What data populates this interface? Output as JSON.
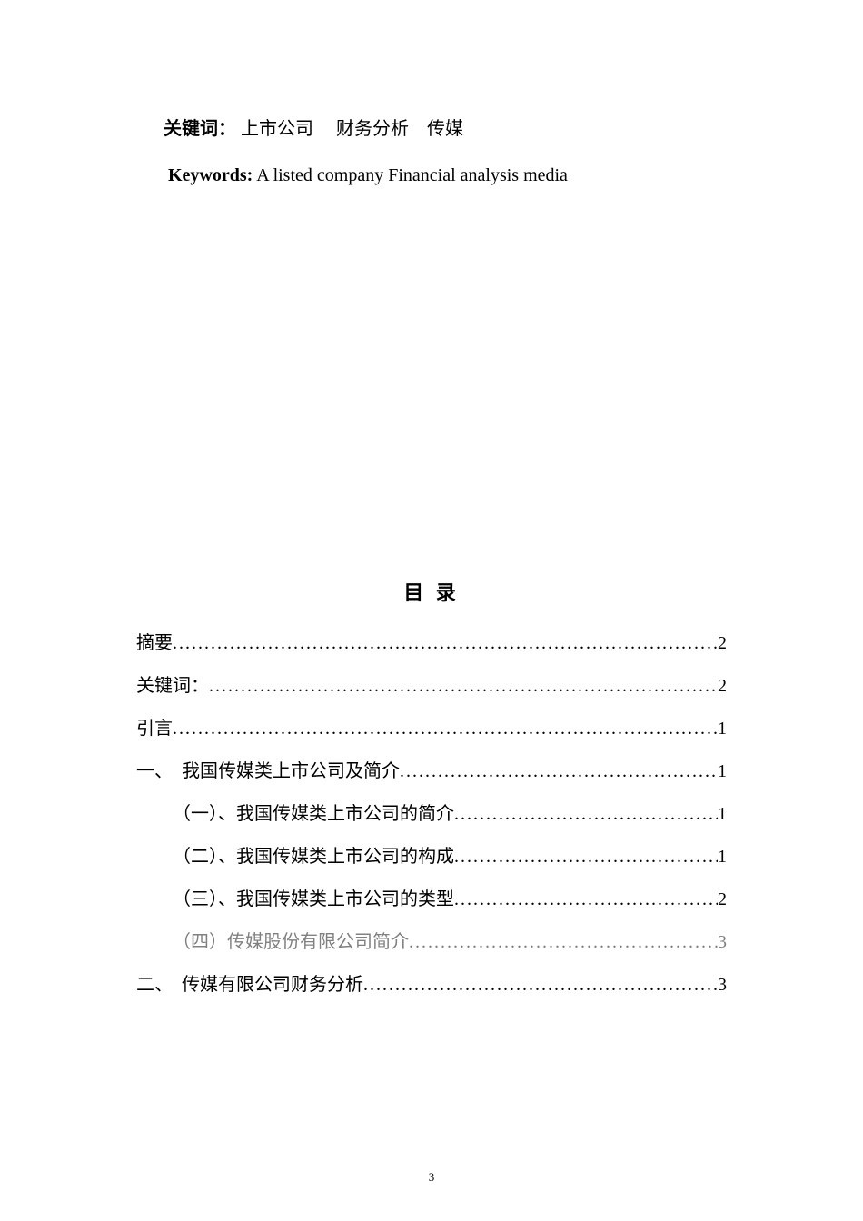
{
  "keywords_cn": {
    "label": "关键词：",
    "terms": "  上市公司　 财务分析　传媒"
  },
  "keywords_en": {
    "label": "Keywords:",
    "terms": "  A listed company Financial analysis media"
  },
  "toc": {
    "title": "目 录",
    "items": [
      {
        "text": "摘要",
        "page": "2",
        "level": 0,
        "gray": false
      },
      {
        "text": "关键词：",
        "page": "2",
        "level": 0,
        "gray": false
      },
      {
        "text": "引言",
        "page": "1",
        "level": 0,
        "gray": false
      },
      {
        "text": "一、　我国传媒类上市公司及简介",
        "page": "1",
        "level": 0,
        "gray": false
      },
      {
        "text": "（一）、我国传媒类上市公司的简介",
        "page": "1",
        "level": 1,
        "gray": false
      },
      {
        "text": "（二）、我国传媒类上市公司的构成",
        "page": "1",
        "level": 1,
        "gray": false
      },
      {
        "text": "（三）、我国传媒类上市公司的类型",
        "page": "2",
        "level": 1,
        "gray": false
      },
      {
        "text": "（四）传媒股份有限公司简介",
        "page": "3",
        "level": 1,
        "gray": true
      },
      {
        "text": "二、　传媒有限公司财务分析",
        "page": "3",
        "level": 0,
        "gray": false
      }
    ]
  },
  "footer": {
    "page_number": "3"
  },
  "colors": {
    "text": "#000000",
    "gray_text": "#808080",
    "background": "#ffffff"
  },
  "typography": {
    "body_fontsize": 20,
    "title_fontsize": 22,
    "footer_fontsize": 13
  }
}
